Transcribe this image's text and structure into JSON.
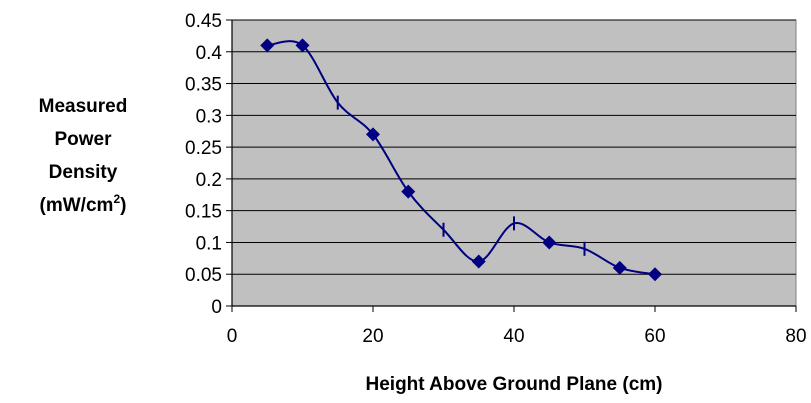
{
  "chart_data": {
    "type": "line",
    "title": "",
    "xlabel": "Height Above Ground Plane (cm)",
    "ylabel_lines": [
      "Measured",
      "Power",
      "Density",
      "(mW/cm",
      "2",
      ")"
    ],
    "xlim": [
      0,
      80
    ],
    "ylim": [
      0,
      0.45
    ],
    "x_ticks": [
      "0",
      "20",
      "40",
      "60",
      "80"
    ],
    "y_ticks": [
      "0",
      "0.05",
      "0.1",
      "0.15",
      "0.2",
      "0.25",
      "0.3",
      "0.35",
      "0.4",
      "0.45"
    ],
    "grid": true,
    "legend": "none",
    "plot_background": "#c0c0c0",
    "series": [
      {
        "color": "#000080",
        "marker": "diamond",
        "points": [
          {
            "x": 5,
            "y": 0.41
          },
          {
            "x": 10,
            "y": 0.41
          },
          {
            "x": 20,
            "y": 0.27
          },
          {
            "x": 25,
            "y": 0.18
          },
          {
            "x": 35,
            "y": 0.07
          },
          {
            "x": 45,
            "y": 0.1
          },
          {
            "x": 55,
            "y": 0.06
          },
          {
            "x": 60,
            "y": 0.05
          }
        ]
      },
      {
        "color": "#000080",
        "marker": "dash",
        "points": [
          {
            "x": 15,
            "y": 0.32
          },
          {
            "x": 30,
            "y": 0.12
          },
          {
            "x": 40,
            "y": 0.13
          },
          {
            "x": 50,
            "y": 0.09
          }
        ]
      }
    ]
  }
}
